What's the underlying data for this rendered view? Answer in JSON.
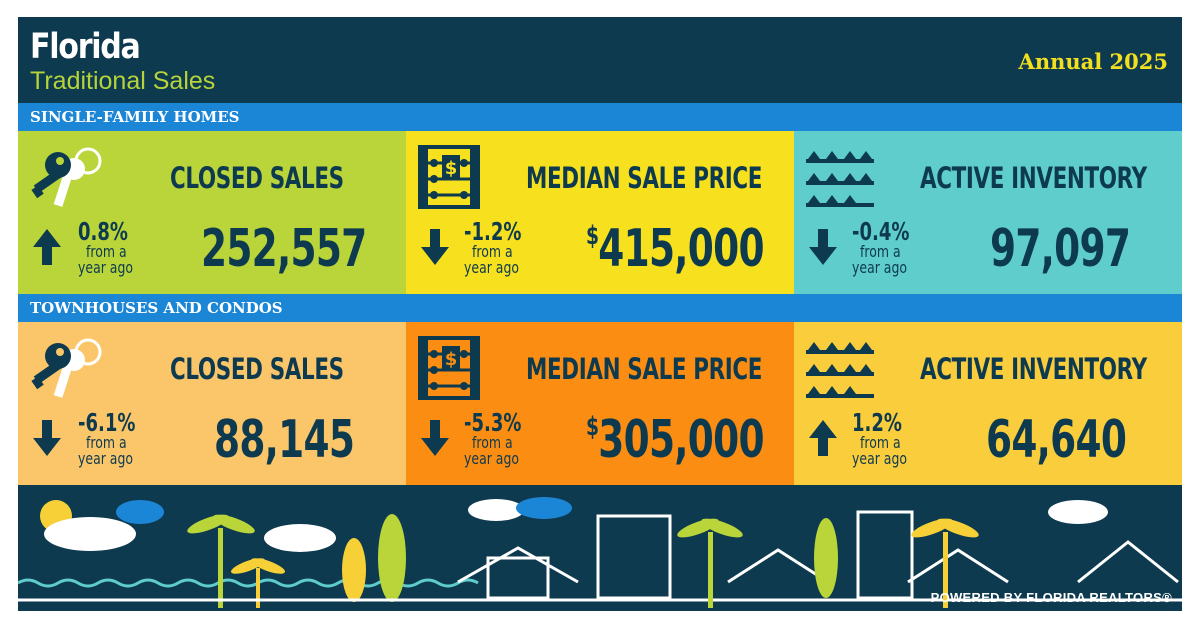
{
  "header": {
    "title": "Florida",
    "subtitle": "Traditional Sales",
    "period": "Annual 2025"
  },
  "sections": [
    {
      "heading": "SINGLE-FAMILY HOMES",
      "tiles": [
        {
          "label": "CLOSED SALES",
          "value": "252,557",
          "change": "0.8%",
          "direction": "up",
          "note_top": "from a",
          "note_bottom": "year ago",
          "icon": "keys-icon",
          "bg": "#b9d53a"
        },
        {
          "label": "MEDIAN SALE PRICE",
          "value": "415,000",
          "currency": "$",
          "change": "-1.2%",
          "direction": "down",
          "note_top": "from a",
          "note_bottom": "year ago",
          "icon": "abacus-icon",
          "bg": "#f7e01e"
        },
        {
          "label": "ACTIVE INVENTORY",
          "value": "97,097",
          "change": "-0.4%",
          "direction": "down",
          "note_top": "from a",
          "note_bottom": "year ago",
          "icon": "houses-shelf-icon",
          "bg": "#5fcdcb"
        }
      ]
    },
    {
      "heading": "TOWNHOUSES AND CONDOS",
      "tiles": [
        {
          "label": "CLOSED SALES",
          "value": "88,145",
          "change": "-6.1%",
          "direction": "down",
          "note_top": "from a",
          "note_bottom": "year ago",
          "icon": "keys-icon",
          "bg": "#fbc66a"
        },
        {
          "label": "MEDIAN SALE PRICE",
          "value": "305,000",
          "currency": "$",
          "change": "-5.3%",
          "direction": "down",
          "note_top": "from a",
          "note_bottom": "year ago",
          "icon": "abacus-icon",
          "bg": "#fb8d12"
        },
        {
          "label": "ACTIVE INVENTORY",
          "value": "64,640",
          "change": "1.2%",
          "direction": "up",
          "note_top": "from a",
          "note_bottom": "year ago",
          "icon": "houses-shelf-icon",
          "bg": "#f9cd3c"
        }
      ]
    }
  ],
  "footer": {
    "powered_by": "POWERED BY FLORIDA REALTORS®"
  },
  "colors": {
    "navy": "#0e3a4f",
    "band_blue": "#1c86d6",
    "title_green": "#b6d43a",
    "year_yellow": "#f2e020"
  }
}
